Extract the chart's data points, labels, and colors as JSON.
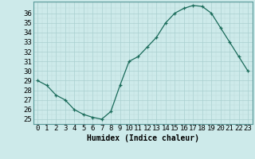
{
  "x": [
    0,
    1,
    2,
    3,
    4,
    5,
    6,
    7,
    8,
    9,
    10,
    11,
    12,
    13,
    14,
    15,
    16,
    17,
    18,
    19,
    20,
    21,
    22,
    23
  ],
  "y": [
    29,
    28.5,
    27.5,
    27,
    26,
    25.5,
    25.2,
    25,
    25.8,
    28.5,
    31,
    31.5,
    32.5,
    33.5,
    35,
    36,
    36.5,
    36.8,
    36.7,
    36,
    34.5,
    33,
    31.5,
    30
  ],
  "line_color": "#1a6b5a",
  "marker": "+",
  "bg_color": "#cdeaea",
  "grid_major_color": "#aacfcf",
  "grid_minor_color": "#bddada",
  "xlabel": "Humidex (Indice chaleur)",
  "ylabel_ticks": [
    25,
    26,
    27,
    28,
    29,
    30,
    31,
    32,
    33,
    34,
    35,
    36
  ],
  "ylim": [
    24.5,
    37.2
  ],
  "xlim": [
    -0.5,
    23.5
  ],
  "xlabel_fontsize": 7,
  "tick_fontsize": 6.5
}
